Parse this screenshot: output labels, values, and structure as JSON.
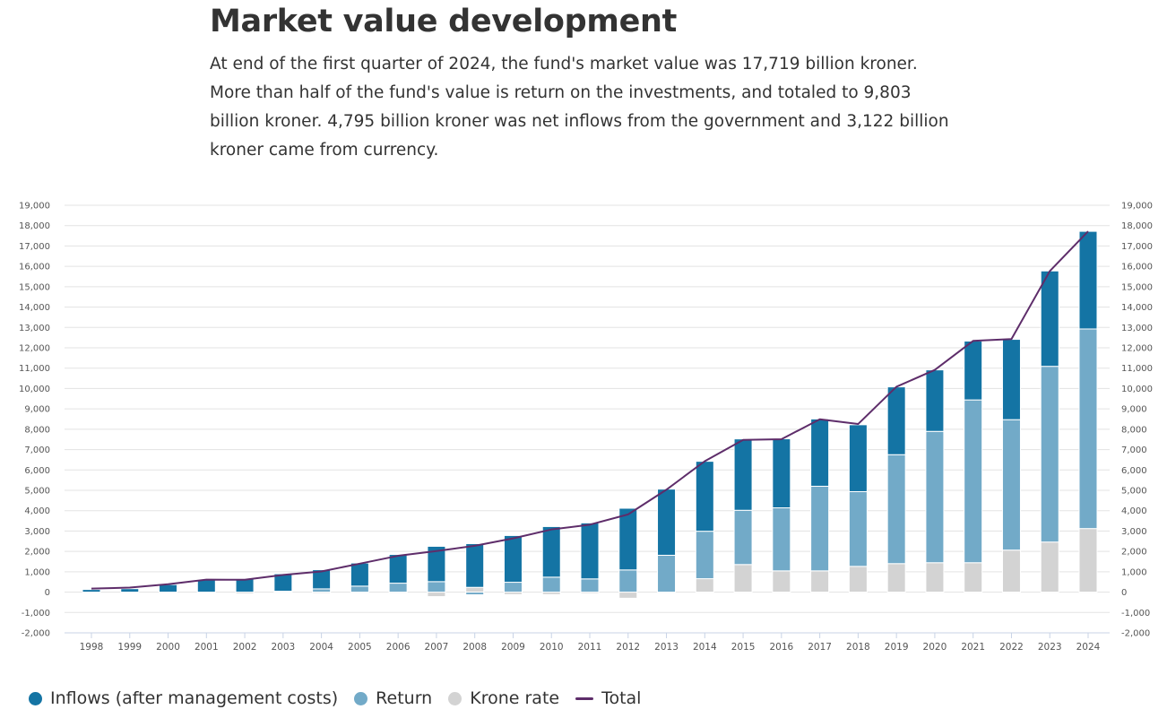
{
  "title": "Market value development",
  "description": "At end of the first quarter of 2024, the fund's market value was 17,719 billion kroner. More than half of the fund's value is return on the investments, and totaled to 9,803 billion kroner. 4,795 billion kroner was net inflows from the government and 3,122 billion kroner came from currency.",
  "colors": {
    "inflows": "#1474a4",
    "return": "#72aac8",
    "krone": "#d3d3d3",
    "total": "#5e2d6a"
  },
  "chart_data": {
    "type": "bar",
    "stacked": true,
    "title": "",
    "xlabel": "",
    "ylabel": "",
    "ylim": [
      -2000,
      19000
    ],
    "yticks": [
      -2000,
      -1000,
      0,
      1000,
      2000,
      3000,
      4000,
      5000,
      6000,
      7000,
      8000,
      9000,
      10000,
      11000,
      12000,
      13000,
      14000,
      15000,
      16000,
      17000,
      18000,
      19000
    ],
    "ytick_labels": [
      "-2,000",
      "-1,000",
      "0",
      "1,000",
      "2,000",
      "3,000",
      "4,000",
      "5,000",
      "6,000",
      "7,000",
      "8,000",
      "9,000",
      "10,000",
      "11,000",
      "12,000",
      "13,000",
      "14,000",
      "15,000",
      "16,000",
      "17,000",
      "18,000",
      "19,000"
    ],
    "axes": "left and right",
    "grid": true,
    "legend_position": "bottom-left",
    "categories": [
      "1998",
      "1999",
      "2000",
      "2001",
      "2002",
      "2003",
      "2004",
      "2005",
      "2006",
      "2007",
      "2008",
      "2009",
      "2010",
      "2011",
      "2012",
      "2013",
      "2014",
      "2015",
      "2016",
      "2017",
      "2018",
      "2019",
      "2020",
      "2021",
      "2022",
      "2023",
      "2024"
    ],
    "series": [
      {
        "name": "Krone rate",
        "key": "krone",
        "type": "bar",
        "values": [
          0,
          0,
          0,
          -40,
          -80,
          0,
          -60,
          0,
          -50,
          -220,
          235,
          -120,
          -120,
          -70,
          -300,
          0,
          660,
          1355,
          1045,
          1045,
          1265,
          1400,
          1445,
          1445,
          2065,
          2460,
          3122
        ]
      },
      {
        "name": "Return",
        "key": "return",
        "type": "bar",
        "values": [
          0,
          0,
          0,
          0,
          0,
          45,
          160,
          295,
          440,
          515,
          -130,
          485,
          735,
          650,
          1090,
          1810,
          2330,
          2665,
          3095,
          4155,
          3670,
          5350,
          6450,
          7995,
          6405,
          8630,
          9803
        ]
      },
      {
        "name": "Inflows (after management costs)",
        "key": "inflows",
        "type": "bar",
        "values": [
          130,
          170,
          370,
          600,
          660,
          855,
          940,
          1135,
          1410,
          1735,
          2145,
          2295,
          2485,
          2750,
          3030,
          3250,
          3435,
          3505,
          3390,
          3305,
          3285,
          3330,
          3020,
          2890,
          3945,
          4685,
          4795
        ]
      },
      {
        "name": "Total",
        "key": "total",
        "type": "line",
        "values": [
          172,
          222,
          386,
          613,
          609,
          845,
          1016,
          1399,
          1784,
          2019,
          2275,
          2640,
          3077,
          3312,
          3816,
          5032,
          6431,
          7475,
          7510,
          8488,
          8256,
          10088,
          10914,
          12340,
          12429,
          15765,
          17719
        ]
      }
    ]
  }
}
